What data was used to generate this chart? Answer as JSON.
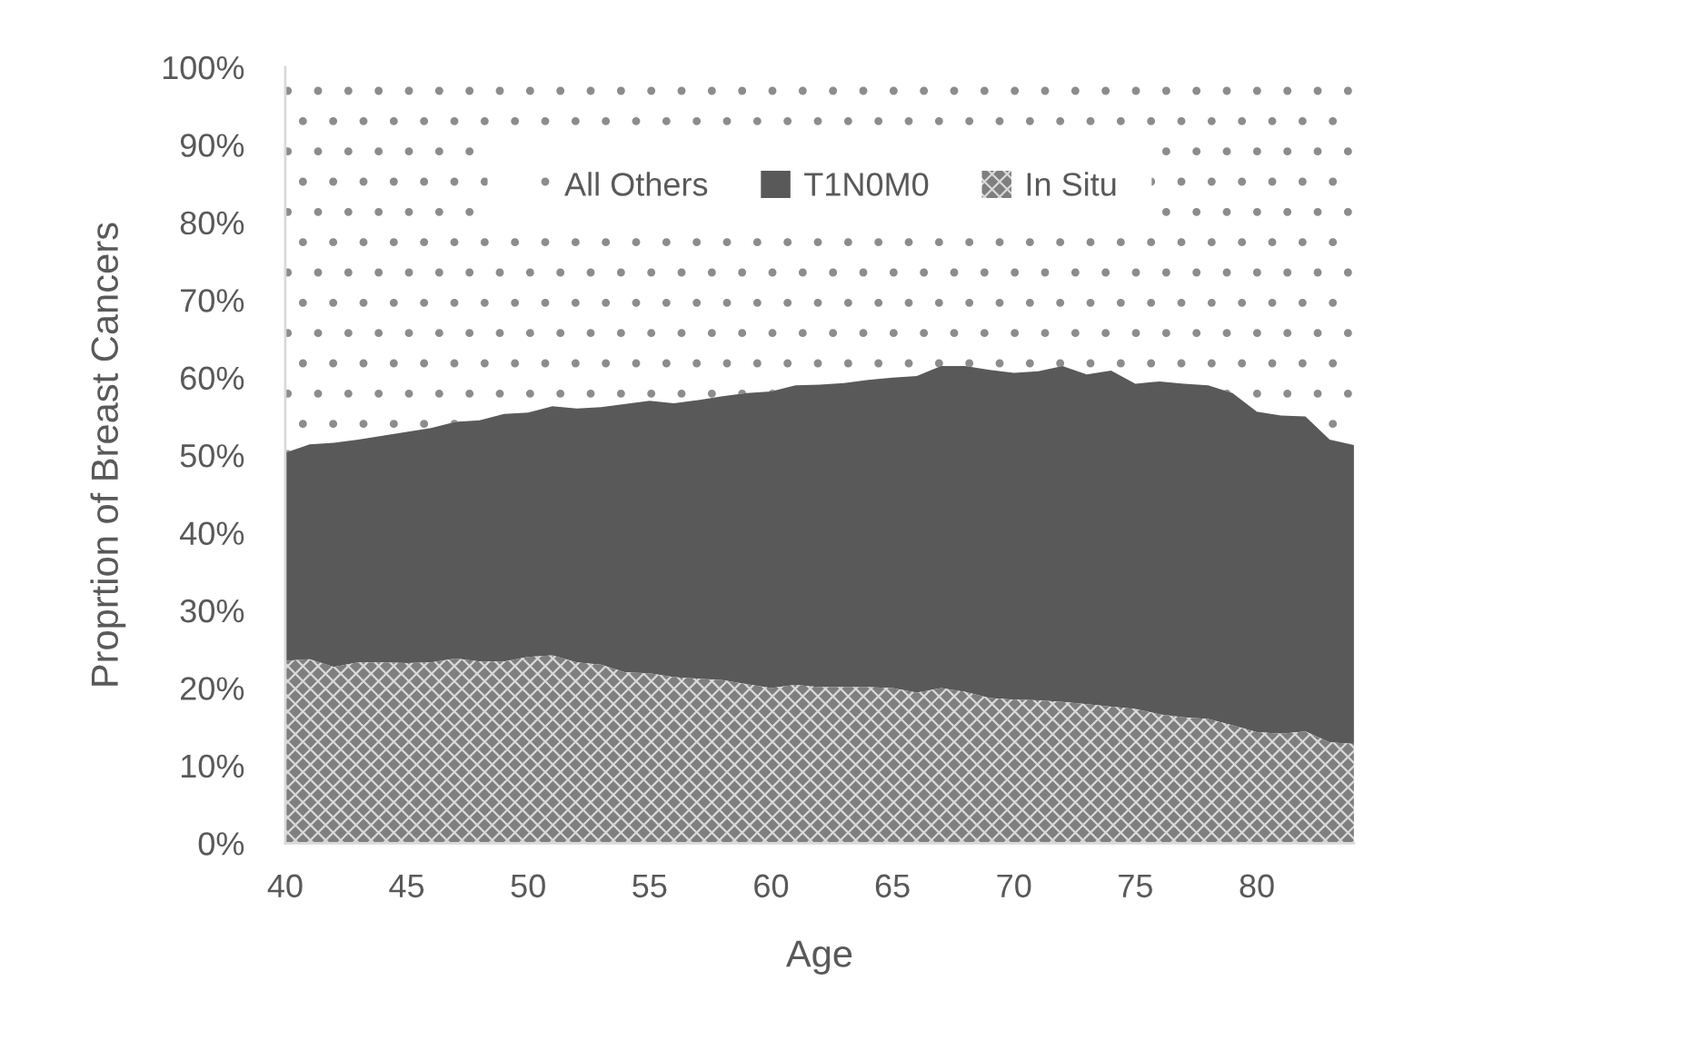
{
  "chart_data": {
    "type": "area",
    "stacked": true,
    "xlabel": "Age",
    "ylabel": "Proprtion of Breast Cancers",
    "legend": "top",
    "x": [
      40,
      41,
      42,
      43,
      44,
      45,
      46,
      47,
      48,
      49,
      50,
      51,
      52,
      53,
      54,
      55,
      56,
      57,
      58,
      59,
      60,
      61,
      62,
      63,
      64,
      65,
      66,
      67,
      68,
      69,
      70,
      71,
      72,
      73,
      74,
      75,
      76,
      77,
      78,
      79,
      80,
      81,
      82,
      83,
      84
    ],
    "xlim": [
      40,
      84
    ],
    "xticks": [
      40,
      45,
      50,
      55,
      60,
      65,
      70,
      75,
      80
    ],
    "ylim": [
      0,
      100
    ],
    "yticks": [
      {
        "value": 0,
        "label": "0%"
      },
      {
        "value": 10,
        "label": "10%"
      },
      {
        "value": 20,
        "label": "20%"
      },
      {
        "value": 30,
        "label": "30%"
      },
      {
        "value": 40,
        "label": "40%"
      },
      {
        "value": 50,
        "label": "50%"
      },
      {
        "value": 60,
        "label": "60%"
      },
      {
        "value": 70,
        "label": "70%"
      },
      {
        "value": 80,
        "label": "80%"
      },
      {
        "value": 90,
        "label": "90%"
      },
      {
        "value": 100,
        "label": "100%"
      }
    ],
    "series": [
      {
        "name": "In Situ",
        "color": "#7f7f7f",
        "values": [
          23.5,
          23.7,
          22.7,
          23.3,
          23.3,
          23.2,
          23.3,
          23.8,
          23.4,
          23.4,
          24.0,
          24.2,
          23.3,
          23.0,
          22.0,
          21.9,
          21.4,
          21.2,
          21.0,
          20.5,
          20.0,
          20.4,
          20.1,
          20.1,
          20.1,
          20.0,
          19.4,
          20.0,
          19.5,
          18.7,
          18.5,
          18.4,
          18.2,
          17.9,
          17.6,
          17.3,
          16.6,
          16.2,
          16.0,
          15.2,
          14.3,
          14.1,
          14.4,
          13.0,
          12.8
        ]
      },
      {
        "name": "T1N0M0",
        "color": "#595959",
        "values": [
          26.8,
          27.7,
          28.9,
          28.7,
          29.2,
          29.8,
          30.2,
          30.5,
          31.1,
          31.9,
          31.5,
          32.1,
          32.7,
          33.2,
          34.6,
          35.1,
          35.3,
          35.9,
          36.6,
          37.5,
          38.2,
          38.6,
          39.0,
          39.2,
          39.6,
          40.0,
          40.8,
          41.5,
          42.0,
          42.3,
          42.1,
          42.4,
          43.3,
          42.5,
          43.3,
          41.9,
          42.9,
          43.0,
          43.0,
          42.8,
          41.3,
          41.0,
          40.6,
          39.0,
          38.5
        ]
      },
      {
        "name": "All Others",
        "color": "#ffffff",
        "values": [
          49.7,
          48.6,
          48.4,
          48.0,
          47.5,
          47.0,
          46.5,
          45.7,
          45.5,
          44.7,
          44.5,
          43.7,
          44.0,
          43.8,
          43.4,
          43.0,
          43.3,
          42.9,
          42.4,
          42.0,
          41.8,
          41.0,
          40.9,
          40.7,
          40.3,
          40.0,
          39.8,
          38.5,
          38.5,
          39.0,
          39.4,
          39.2,
          38.5,
          39.6,
          39.1,
          40.8,
          40.5,
          40.8,
          41.0,
          42.0,
          44.4,
          44.9,
          45.0,
          48.0,
          48.7
        ]
      }
    ]
  }
}
